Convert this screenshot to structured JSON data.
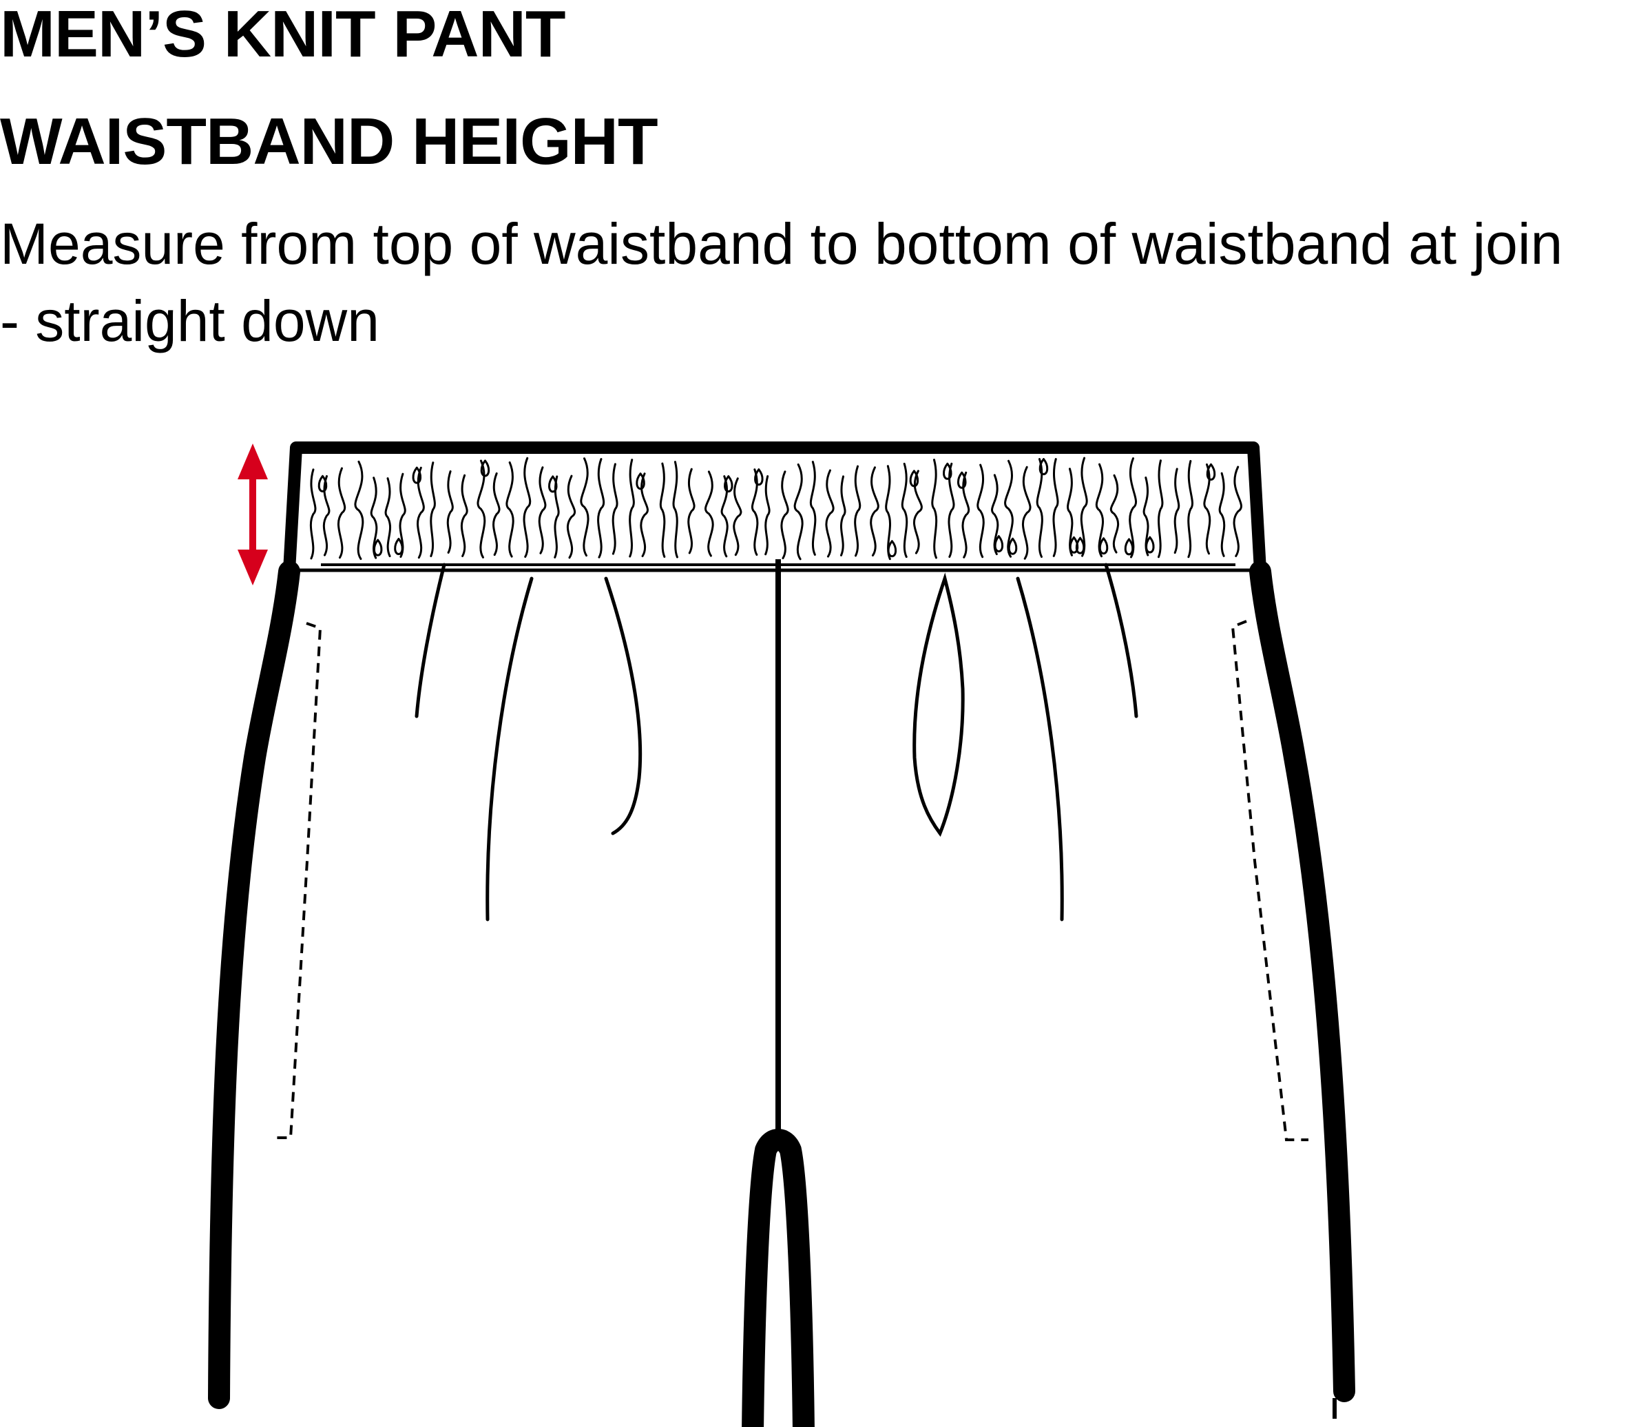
{
  "title": "MEN’S KNIT PANT",
  "subtitle": "WAISTBAND HEIGHT",
  "instructions": {
    "line1": "Measure from top of waistband to bottom of waistband at join",
    "line2": "- straight down"
  },
  "colors": {
    "arrow": "#d6001c",
    "outline": "#000000",
    "background": "#ffffff"
  },
  "icons": {
    "measure_arrow": "double-headed-vertical-arrow-icon"
  }
}
